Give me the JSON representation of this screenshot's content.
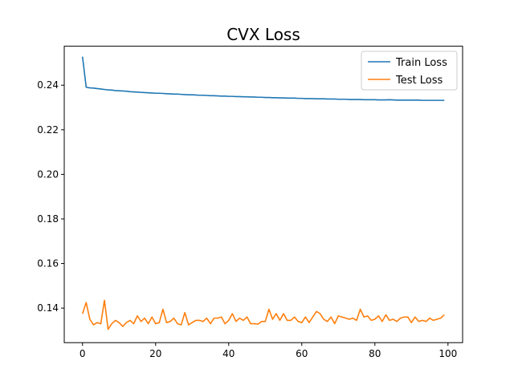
{
  "chart_data": {
    "type": "line",
    "title": "CVX Loss",
    "xlabel": "",
    "ylabel": "",
    "xlim": [
      -5,
      104
    ],
    "ylim": [
      0.1245,
      0.2575
    ],
    "xticks": [
      0,
      20,
      40,
      60,
      80,
      100
    ],
    "xtick_labels": [
      "0",
      "20",
      "40",
      "60",
      "80",
      "100"
    ],
    "yticks": [
      0.14,
      0.16,
      0.18,
      0.2,
      0.22,
      0.24
    ],
    "ytick_labels": [
      "0.14",
      "0.16",
      "0.18",
      "0.20",
      "0.22",
      "0.24"
    ],
    "grid": false,
    "legend": "top-right",
    "series": [
      {
        "name": "Train Loss",
        "color": "#1f77b4",
        "x": [
          0,
          1,
          2,
          3,
          4,
          5,
          6,
          7,
          8,
          9,
          10,
          11,
          12,
          13,
          14,
          15,
          16,
          17,
          18,
          19,
          20,
          21,
          22,
          23,
          24,
          25,
          26,
          27,
          28,
          29,
          30,
          31,
          32,
          33,
          34,
          35,
          36,
          37,
          38,
          39,
          40,
          41,
          42,
          43,
          44,
          45,
          46,
          47,
          48,
          49,
          50,
          51,
          52,
          53,
          54,
          55,
          56,
          57,
          58,
          59,
          60,
          61,
          62,
          63,
          64,
          65,
          66,
          67,
          68,
          69,
          70,
          71,
          72,
          73,
          74,
          75,
          76,
          77,
          78,
          79,
          80,
          81,
          82,
          83,
          84,
          85,
          86,
          87,
          88,
          89,
          90,
          91,
          92,
          93,
          94,
          95,
          96,
          97,
          98,
          99
        ],
        "values": [
          0.2528,
          0.2391,
          0.2388,
          0.2387,
          0.2385,
          0.2383,
          0.2381,
          0.2379,
          0.2378,
          0.2376,
          0.2375,
          0.2374,
          0.2373,
          0.2371,
          0.237,
          0.2369,
          0.2368,
          0.2367,
          0.2366,
          0.2365,
          0.2364,
          0.2364,
          0.2363,
          0.2362,
          0.2361,
          0.236,
          0.236,
          0.2359,
          0.2358,
          0.2357,
          0.2357,
          0.2356,
          0.2355,
          0.2355,
          0.2354,
          0.2353,
          0.2353,
          0.2352,
          0.2351,
          0.2351,
          0.235,
          0.235,
          0.2349,
          0.2349,
          0.2348,
          0.2348,
          0.2347,
          0.2347,
          0.2346,
          0.2346,
          0.2345,
          0.2345,
          0.2344,
          0.2344,
          0.2343,
          0.2343,
          0.2342,
          0.2342,
          0.2342,
          0.2341,
          0.2341,
          0.234,
          0.234,
          0.234,
          0.2339,
          0.2339,
          0.2339,
          0.2338,
          0.2338,
          0.2338,
          0.2337,
          0.2337,
          0.2337,
          0.2336,
          0.2336,
          0.2336,
          0.2336,
          0.2335,
          0.2335,
          0.2335,
          0.2335,
          0.2334,
          0.2334,
          0.2334,
          0.2335,
          0.2334,
          0.2333,
          0.2333,
          0.2333,
          0.2333,
          0.2333,
          0.2333,
          0.2333,
          0.2332,
          0.2332,
          0.2332,
          0.2332,
          0.2332,
          0.2332,
          0.2332
        ]
      },
      {
        "name": "Test Loss",
        "color": "#ff7f0e",
        "x": [
          0,
          1,
          2,
          3,
          4,
          5,
          6,
          7,
          8,
          9,
          10,
          11,
          12,
          13,
          14,
          15,
          16,
          17,
          18,
          19,
          20,
          21,
          22,
          23,
          24,
          25,
          26,
          27,
          28,
          29,
          30,
          31,
          32,
          33,
          34,
          35,
          36,
          37,
          38,
          39,
          40,
          41,
          42,
          43,
          44,
          45,
          46,
          47,
          48,
          49,
          50,
          51,
          52,
          53,
          54,
          55,
          56,
          57,
          58,
          59,
          60,
          61,
          62,
          63,
          64,
          65,
          66,
          67,
          68,
          69,
          70,
          71,
          72,
          73,
          74,
          75,
          76,
          77,
          78,
          79,
          80,
          81,
          82,
          83,
          84,
          85,
          86,
          87,
          88,
          89,
          90,
          91,
          92,
          93,
          94,
          95,
          96,
          97,
          98,
          99
        ],
        "values": [
          0.1375,
          0.1425,
          0.135,
          0.1325,
          0.1335,
          0.133,
          0.1435,
          0.1305,
          0.133,
          0.1345,
          0.1335,
          0.1318,
          0.1335,
          0.1345,
          0.133,
          0.1365,
          0.134,
          0.1355,
          0.133,
          0.136,
          0.133,
          0.1335,
          0.1395,
          0.1335,
          0.134,
          0.1355,
          0.133,
          0.1325,
          0.138,
          0.1325,
          0.1335,
          0.1345,
          0.1345,
          0.134,
          0.1355,
          0.133,
          0.1355,
          0.1355,
          0.136,
          0.133,
          0.1345,
          0.1375,
          0.134,
          0.1355,
          0.1345,
          0.136,
          0.133,
          0.133,
          0.1328,
          0.134,
          0.134,
          0.1395,
          0.135,
          0.1375,
          0.1345,
          0.1375,
          0.1345,
          0.1345,
          0.136,
          0.134,
          0.1335,
          0.136,
          0.1335,
          0.136,
          0.1385,
          0.1375,
          0.135,
          0.134,
          0.136,
          0.133,
          0.1365,
          0.136,
          0.1355,
          0.135,
          0.1355,
          0.1345,
          0.1395,
          0.136,
          0.1365,
          0.1345,
          0.135,
          0.1365,
          0.134,
          0.137,
          0.1345,
          0.135,
          0.134,
          0.1355,
          0.136,
          0.136,
          0.1335,
          0.136,
          0.134,
          0.1345,
          0.134,
          0.1355,
          0.1345,
          0.135,
          0.1355,
          0.137
        ]
      }
    ]
  }
}
